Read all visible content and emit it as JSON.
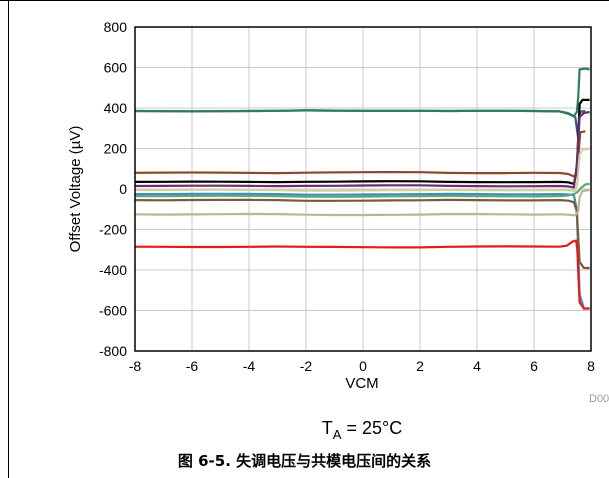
{
  "chart_data": {
    "type": "line",
    "xlabel": "VCM",
    "ylabel": "Offset Voltage (µV)",
    "xlim": [
      -8,
      8
    ],
    "ylim": [
      -800,
      800
    ],
    "x_ticks": [
      "-8",
      "-6",
      "-4",
      "-2",
      "0",
      "2",
      "4",
      "6",
      "8"
    ],
    "y_ticks": [
      "800",
      "600",
      "400",
      "200",
      "0",
      "-200",
      "-400",
      "-600",
      "-800"
    ],
    "grid": true,
    "legend": "none",
    "series": [
      {
        "color": "#2b5f8a",
        "base": 385,
        "tail": [
          [
            6.9,
            383
          ],
          [
            7.2,
            372
          ],
          [
            7.45,
            355
          ],
          [
            7.55,
            250
          ],
          [
            7.6,
            370
          ],
          [
            7.65,
            382
          ],
          [
            7.8,
            385
          ]
        ]
      },
      {
        "color": "#2e7d5b",
        "base": 385,
        "tail": [
          [
            6.9,
            383
          ],
          [
            7.2,
            375
          ],
          [
            7.4,
            360
          ],
          [
            7.5,
            380
          ],
          [
            7.55,
            450
          ],
          [
            7.6,
            590
          ],
          [
            7.8,
            595
          ],
          [
            7.95,
            590
          ]
        ]
      },
      {
        "color": "#8a4a2a",
        "base": 80,
        "tail": [
          [
            6.9,
            79
          ],
          [
            7.2,
            74
          ],
          [
            7.4,
            62
          ],
          [
            7.5,
            70
          ],
          [
            7.58,
            200
          ],
          [
            7.62,
            280
          ],
          [
            7.8,
            285
          ]
        ]
      },
      {
        "color": "#000000",
        "base": 35,
        "tail": [
          [
            6.9,
            35
          ],
          [
            7.2,
            33
          ],
          [
            7.4,
            25
          ],
          [
            7.5,
            90
          ],
          [
            7.6,
            420
          ],
          [
            7.7,
            440
          ],
          [
            7.95,
            440
          ]
        ]
      },
      {
        "color": "#6b2d6b",
        "base": 15,
        "tail": [
          [
            6.9,
            15
          ],
          [
            7.2,
            13
          ],
          [
            7.4,
            8
          ],
          [
            7.5,
            120
          ],
          [
            7.6,
            355
          ],
          [
            7.75,
            375
          ],
          [
            7.95,
            380
          ]
        ]
      },
      {
        "color": "#cfcfa8",
        "base": -5,
        "tail": [
          [
            6.9,
            -5
          ],
          [
            7.2,
            -6
          ],
          [
            7.45,
            -10
          ],
          [
            7.52,
            30
          ],
          [
            7.6,
            170
          ],
          [
            7.7,
            195
          ],
          [
            7.95,
            200
          ]
        ]
      },
      {
        "color": "#3f8fb8",
        "base": -25,
        "tail": [
          [
            6.9,
            -25
          ],
          [
            7.2,
            -27
          ],
          [
            7.4,
            -30
          ],
          [
            7.5,
            -100
          ],
          [
            7.6,
            -520
          ],
          [
            7.75,
            -590
          ],
          [
            7.95,
            -590
          ]
        ]
      },
      {
        "color": "#5aaa7a",
        "base": -35,
        "tail": [
          [
            6.9,
            -35
          ],
          [
            7.2,
            -32
          ],
          [
            7.45,
            -22
          ],
          [
            7.55,
            -12
          ],
          [
            7.65,
            5
          ],
          [
            7.8,
            22
          ],
          [
            7.95,
            25
          ]
        ]
      },
      {
        "color": "#7a5a3a",
        "base": -55,
        "tail": [
          [
            6.9,
            -55
          ],
          [
            7.2,
            -58
          ],
          [
            7.4,
            -65
          ],
          [
            7.5,
            -110
          ],
          [
            7.6,
            -360
          ],
          [
            7.75,
            -390
          ],
          [
            7.95,
            -390
          ]
        ]
      },
      {
        "color": "#b8b890",
        "base": -125,
        "tail": [
          [
            6.9,
            -125
          ],
          [
            7.2,
            -127
          ],
          [
            7.45,
            -130
          ],
          [
            7.55,
            -110
          ],
          [
            7.6,
            -40
          ],
          [
            7.7,
            -10
          ],
          [
            7.95,
            -5
          ]
        ]
      },
      {
        "color": "#e41a1c",
        "base": -285,
        "tail": [
          [
            6.9,
            -285
          ],
          [
            7.15,
            -280
          ],
          [
            7.35,
            -260
          ],
          [
            7.48,
            -255
          ],
          [
            7.52,
            -300
          ],
          [
            7.6,
            -560
          ],
          [
            7.75,
            -590
          ],
          [
            7.95,
            -590
          ]
        ]
      }
    ]
  },
  "ta_label": {
    "base": "T",
    "sub": "A",
    "rest": " = 25°C"
  },
  "doc_id": "D00",
  "caption": "图 6-5. 失调电压与共模电压间的关系"
}
